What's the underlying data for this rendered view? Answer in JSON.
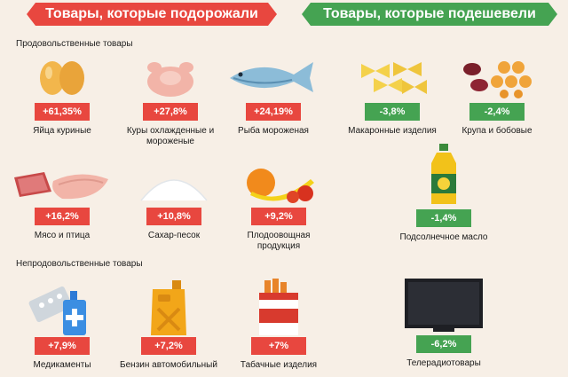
{
  "banners": {
    "up": "Товары, которые подорожали",
    "down": "Товары, которые подешевели"
  },
  "sections": {
    "food": "Продовольственные товары",
    "nonfood": "Непродовольственные товары"
  },
  "items": {
    "eggs": {
      "change": "+61,35%",
      "label": "Яйца куриные",
      "direction": "up",
      "icon": "eggs-icon"
    },
    "chicken": {
      "change": "+27,8%",
      "label": "Куры охлажденные и мороженые",
      "direction": "up",
      "icon": "chicken-icon"
    },
    "fish": {
      "change": "+24,19%",
      "label": "Рыба мороженая",
      "direction": "up",
      "icon": "fish-icon"
    },
    "pasta": {
      "change": "-3,8%",
      "label": "Макаронные изделия",
      "direction": "down",
      "icon": "pasta-icon"
    },
    "grain": {
      "change": "-2,4%",
      "label": "Крупа и бобовые",
      "direction": "down",
      "icon": "beans-icon"
    },
    "meat": {
      "change": "+16,2%",
      "label": "Мясо и птица",
      "direction": "up",
      "icon": "meat-icon"
    },
    "sugar": {
      "change": "+10,8%",
      "label": "Сахар-песок",
      "direction": "up",
      "icon": "sugar-icon"
    },
    "produce": {
      "change": "+9,2%",
      "label": "Плодоовощная продукция",
      "direction": "up",
      "icon": "fruit-icon"
    },
    "oil": {
      "change": "-1,4%",
      "label": "Подсолнечное масло",
      "direction": "down",
      "icon": "oil-bottle-icon"
    },
    "medicine": {
      "change": "+7,9%",
      "label": "Медикаменты",
      "direction": "up",
      "icon": "pills-icon"
    },
    "gasoline": {
      "change": "+7,2%",
      "label": "Бензин автомобильный",
      "direction": "up",
      "icon": "jerrycan-icon"
    },
    "tobacco": {
      "change": "+7%",
      "label": "Табачные изделия",
      "direction": "up",
      "icon": "cigarettes-icon"
    },
    "tv": {
      "change": "-6,2%",
      "label": "Телерадиотовары",
      "direction": "down",
      "icon": "tv-icon"
    }
  },
  "colors": {
    "up": "#e8473f",
    "down": "#45a352",
    "background": "#f7efe6"
  }
}
